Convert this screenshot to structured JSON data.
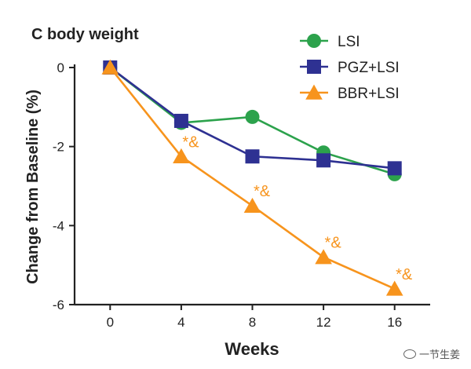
{
  "chart_data": {
    "type": "line",
    "title": "C body weight",
    "xlabel": "Weeks",
    "ylabel": "Change from Baseline (%)",
    "x": [
      0,
      4,
      8,
      12,
      16
    ],
    "xticks": [
      "0",
      "4",
      "8",
      "12",
      "16"
    ],
    "yticks": [
      "0",
      "-2",
      "-4",
      "-6"
    ],
    "xlim": [
      -2,
      18
    ],
    "ylim": [
      -6,
      0
    ],
    "grid": false,
    "legend_position": "top-right",
    "series": [
      {
        "name": "LSI",
        "values": [
          0,
          -1.4,
          -1.25,
          -2.15,
          -2.7
        ],
        "color": "#2ca24c",
        "marker": "circle"
      },
      {
        "name": "PGZ+LSI",
        "values": [
          0,
          -1.35,
          -2.25,
          -2.35,
          -2.55
        ],
        "color": "#2e3192",
        "marker": "square"
      },
      {
        "name": "BBR+LSI",
        "values": [
          0,
          -2.25,
          -3.5,
          -4.8,
          -5.6
        ],
        "color": "#f7941d",
        "marker": "triangle"
      }
    ],
    "annotations": [
      {
        "text": "*&",
        "x": 4,
        "y": -2.25
      },
      {
        "text": "*&",
        "x": 8,
        "y": -3.5
      },
      {
        "text": "*&",
        "x": 12,
        "y": -4.8
      },
      {
        "text": "*&",
        "x": 16,
        "y": -5.6
      }
    ],
    "annotation_color": "#f7941d"
  },
  "watermark": {
    "text": "一节生姜",
    "icon": "wechat-icon"
  }
}
